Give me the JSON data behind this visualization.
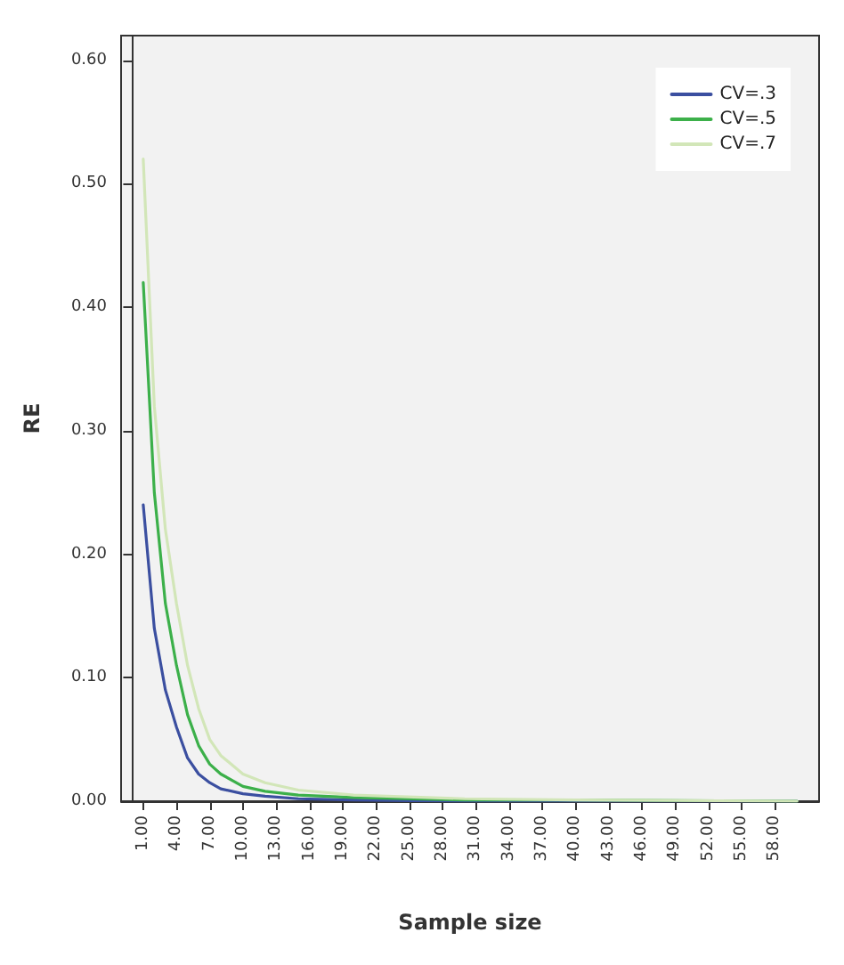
{
  "chart_data": {
    "type": "line",
    "xlabel": "Sample size",
    "ylabel": "RE",
    "x": [
      1,
      2,
      3,
      4,
      5,
      6,
      7,
      8,
      10,
      12,
      15,
      20,
      30,
      40,
      60
    ],
    "series": [
      {
        "name": "CV=.3",
        "color": "#3b4fa0",
        "values": [
          0.24,
          0.14,
          0.09,
          0.06,
          0.035,
          0.022,
          0.015,
          0.01,
          0.006,
          0.004,
          0.002,
          0.001,
          0,
          0,
          0
        ]
      },
      {
        "name": "CV=.5",
        "color": "#3cb04a",
        "values": [
          0.42,
          0.25,
          0.16,
          0.11,
          0.07,
          0.045,
          0.03,
          0.022,
          0.012,
          0.008,
          0.005,
          0.003,
          0.001,
          0.001,
          0
        ]
      },
      {
        "name": "CV=.7",
        "color": "#d2e6b8",
        "values": [
          0.52,
          0.32,
          0.22,
          0.16,
          0.11,
          0.075,
          0.05,
          0.037,
          0.022,
          0.015,
          0.009,
          0.005,
          0.002,
          0.001,
          0
        ]
      }
    ],
    "xlim": [
      -1,
      62
    ],
    "xticks": [
      {
        "value": 1,
        "label": "1.00"
      },
      {
        "value": 4,
        "label": "4.00"
      },
      {
        "value": 7,
        "label": "7.00"
      },
      {
        "value": 10,
        "label": "10.00"
      },
      {
        "value": 13,
        "label": "13.00"
      },
      {
        "value": 16,
        "label": "16.00"
      },
      {
        "value": 19,
        "label": "19.00"
      },
      {
        "value": 22,
        "label": "22.00"
      },
      {
        "value": 25,
        "label": "25.00"
      },
      {
        "value": 28,
        "label": "28.00"
      },
      {
        "value": 31,
        "label": "31.00"
      },
      {
        "value": 34,
        "label": "34.00"
      },
      {
        "value": 37,
        "label": "37.00"
      },
      {
        "value": 40,
        "label": "40.00"
      },
      {
        "value": 43,
        "label": "43.00"
      },
      {
        "value": 46,
        "label": "46.00"
      },
      {
        "value": 49,
        "label": "49.00"
      },
      {
        "value": 52,
        "label": "52.00"
      },
      {
        "value": 55,
        "label": "55.00"
      },
      {
        "value": 58,
        "label": "58.00"
      }
    ],
    "ylim": [
      0,
      0.62
    ],
    "yticks": [
      {
        "value": 0,
        "label": "0.00"
      },
      {
        "value": 0.1,
        "label": "0.10"
      },
      {
        "value": 0.2,
        "label": "0.20"
      },
      {
        "value": 0.3,
        "label": "0.30"
      },
      {
        "value": 0.4,
        "label": "0.40"
      },
      {
        "value": 0.5,
        "label": "0.50"
      },
      {
        "value": 0.6,
        "label": "0.60"
      }
    ],
    "grid": false,
    "legend": "top right",
    "marker": "none",
    "line_style": "solid"
  }
}
